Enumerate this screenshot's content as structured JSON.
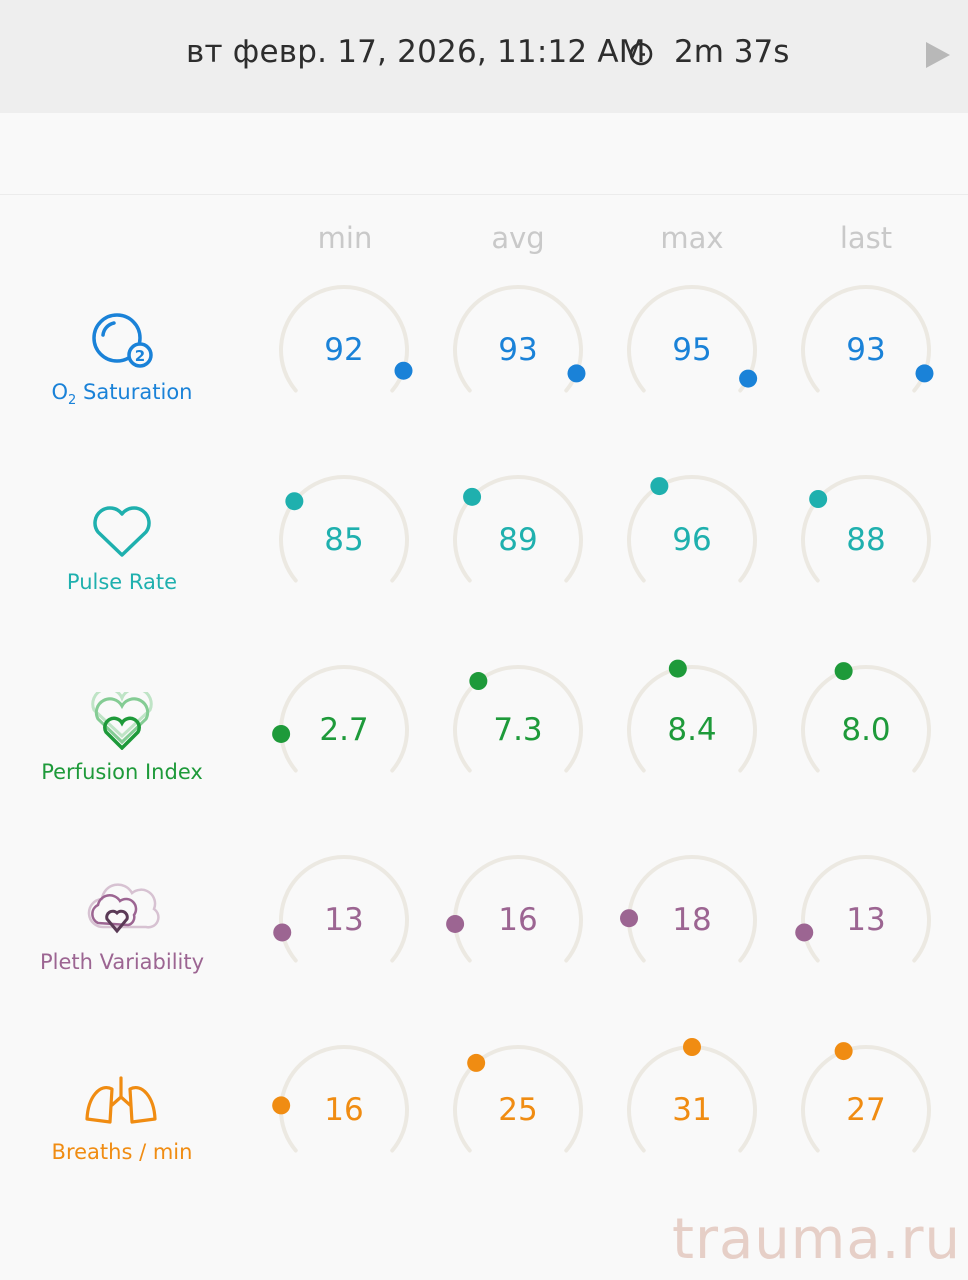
{
  "header": {
    "datetime": "вт февр. 17, 2026, 11:12 AM",
    "duration": "2m 37s",
    "clock_icon": "clock-icon",
    "play_icon": "play-icon"
  },
  "columns": [
    "min",
    "avg",
    "max",
    "last"
  ],
  "rows": [
    {
      "key": "o2",
      "label_main": "O",
      "label_sub": "2",
      "label_rest": " Saturation",
      "icon": "o2-bubble-icon",
      "color": "#1a82d8",
      "values": [
        "92",
        "93",
        "95",
        "93"
      ],
      "levels": [
        0.92,
        0.93,
        0.95,
        0.93
      ]
    },
    {
      "key": "pulse",
      "label": "Pulse Rate",
      "icon": "heart-icon",
      "color": "#1fb0ae",
      "values": [
        "85",
        "89",
        "96",
        "88"
      ],
      "levels": [
        0.3,
        0.32,
        0.38,
        0.31
      ]
    },
    {
      "key": "perfusion",
      "label": "Perfusion Index",
      "icon": "layered-heart-icon",
      "color": "#1e9a3a",
      "values": [
        "2.7",
        "7.3",
        "8.4",
        "8.0"
      ],
      "levels": [
        0.14,
        0.35,
        0.45,
        0.42
      ]
    },
    {
      "key": "pleth",
      "label": "Pleth Variability",
      "icon": "cloud-heart-icon",
      "color": "#9c6592",
      "values": [
        "13",
        "16",
        "18",
        "13"
      ],
      "levels": [
        0.11,
        0.14,
        0.16,
        0.11
      ]
    },
    {
      "key": "breaths",
      "label": "Breaths / min",
      "icon": "lungs-icon",
      "color": "#f08c12",
      "values": [
        "16",
        "25",
        "31",
        "27"
      ],
      "levels": [
        0.17,
        0.34,
        0.5,
        0.42
      ]
    }
  ],
  "watermark": "trauma.ru"
}
